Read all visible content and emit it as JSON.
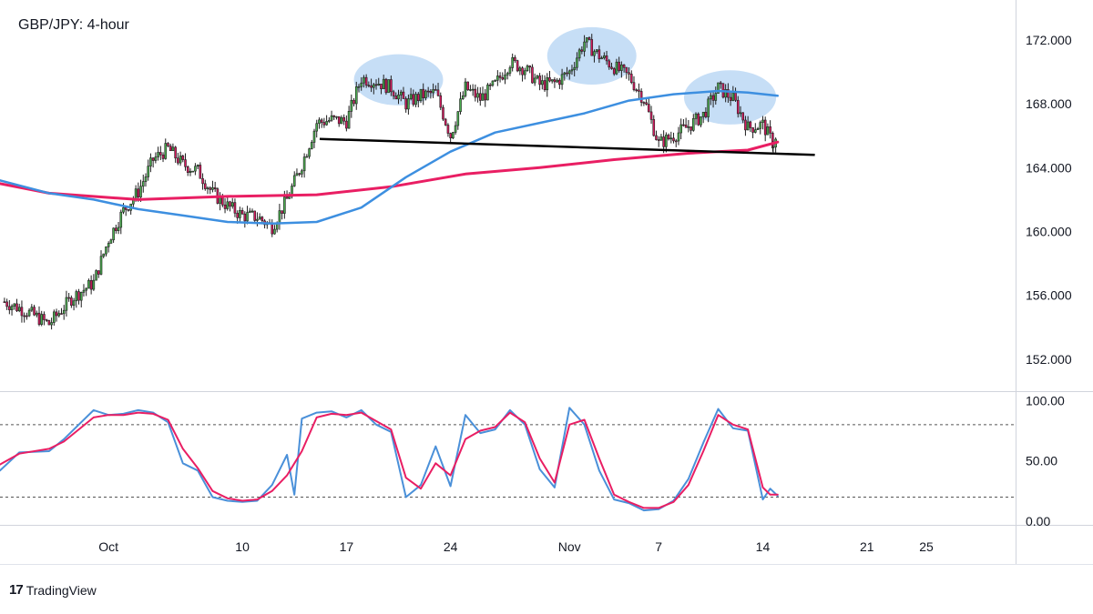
{
  "colors": {
    "bull": "#26a69a",
    "bull_fill": "#4caf50",
    "bear": "#d81b60",
    "ma_slow": "#e91e63",
    "ma_fast": "#3d8fe0",
    "stoch_k": "#4a90d9",
    "stoch_d": "#e91e63",
    "neckline": "#000000",
    "highlight": "#bcd8f4",
    "grid_line": "#d1d4dc",
    "text": "#131722"
  },
  "brand": {
    "name": "TradingView",
    "logo": "17"
  },
  "chart_data": [
    {
      "type": "candlestick",
      "title": "GBP/JPY: 4-hour",
      "ylim": [
        150.0,
        174.5
      ],
      "yticks": [
        "172.000",
        "168.000",
        "164.000",
        "160.000",
        "156.000",
        "152.000"
      ],
      "ytick_values": [
        172,
        168,
        164,
        160,
        156,
        152
      ],
      "xticks": [
        "Oct",
        "10",
        "17",
        "24",
        "Nov",
        "7",
        "14",
        "21",
        "25"
      ],
      "xtick_days": [
        1,
        10,
        17,
        24,
        32,
        38,
        45,
        52,
        56
      ],
      "xlim_days": [
        -6.3,
        62.0
      ],
      "candle_anchors": [
        [
          -6.0,
          155.6
        ],
        [
          -4.5,
          155.0
        ],
        [
          -3.0,
          154.2
        ],
        [
          -1.5,
          155.8
        ],
        [
          0.0,
          156.8
        ],
        [
          1.0,
          159.5
        ],
        [
          2.0,
          161.3
        ],
        [
          3.0,
          162.5
        ],
        [
          4.0,
          164.5
        ],
        [
          5.0,
          165.2
        ],
        [
          6.0,
          164.2
        ],
        [
          7.0,
          163.8
        ],
        [
          8.0,
          162.4
        ],
        [
          9.0,
          161.6
        ],
        [
          10.0,
          161.0
        ],
        [
          11.0,
          160.9
        ],
        [
          12.0,
          160.3
        ],
        [
          13.0,
          162.0
        ],
        [
          14.0,
          164.2
        ],
        [
          15.0,
          166.8
        ],
        [
          16.0,
          167.0
        ],
        [
          17.0,
          166.9
        ],
        [
          18.0,
          169.6
        ],
        [
          19.0,
          169.4
        ],
        [
          20.0,
          169.0
        ],
        [
          21.0,
          168.0
        ],
        [
          22.0,
          168.5
        ],
        [
          23.0,
          168.7
        ],
        [
          24.0,
          166.0
        ],
        [
          25.0,
          169.0
        ],
        [
          26.0,
          168.3
        ],
        [
          27.0,
          169.2
        ],
        [
          28.0,
          170.6
        ],
        [
          29.0,
          170.2
        ],
        [
          30.0,
          169.2
        ],
        [
          31.0,
          169.3
        ],
        [
          32.0,
          170.0
        ],
        [
          33.0,
          171.9
        ],
        [
          34.0,
          171.0
        ],
        [
          35.0,
          170.3
        ],
        [
          36.0,
          169.7
        ],
        [
          37.0,
          168.3
        ],
        [
          38.0,
          165.5
        ],
        [
          39.0,
          166.0
        ],
        [
          40.0,
          166.6
        ],
        [
          41.0,
          167.3
        ],
        [
          42.0,
          169.0
        ],
        [
          43.0,
          168.3
        ],
        [
          44.0,
          166.5
        ],
        [
          45.0,
          166.7
        ],
        [
          45.7,
          165.5
        ],
        [
          46.0,
          165.8
        ]
      ],
      "series": [
        {
          "name": "",
          "points": [
            [
              -6.3,
              163.0
            ],
            [
              -3.0,
              162.4
            ],
            [
              3.0,
              162.0
            ],
            [
              9.0,
              162.2
            ],
            [
              15.0,
              162.3
            ],
            [
              20.0,
              162.8
            ],
            [
              25.0,
              163.6
            ],
            [
              30.0,
              164.0
            ],
            [
              35.0,
              164.5
            ],
            [
              40.0,
              164.9
            ],
            [
              44.0,
              165.1
            ],
            [
              46.0,
              165.6
            ]
          ]
        },
        {
          "name": "",
          "points": [
            [
              -6.3,
              163.2
            ],
            [
              -3.0,
              162.4
            ],
            [
              0.0,
              162.0
            ],
            [
              3.0,
              161.4
            ],
            [
              6.0,
              161.0
            ],
            [
              9.0,
              160.6
            ],
            [
              12.0,
              160.5
            ],
            [
              15.0,
              160.6
            ],
            [
              18.0,
              161.5
            ],
            [
              21.0,
              163.4
            ],
            [
              24.0,
              165.0
            ],
            [
              27.0,
              166.2
            ],
            [
              30.0,
              166.8
            ],
            [
              33.0,
              167.4
            ],
            [
              36.0,
              168.2
            ],
            [
              39.0,
              168.6
            ],
            [
              42.0,
              168.8
            ],
            [
              44.0,
              168.7
            ],
            [
              46.0,
              168.5
            ]
          ]
        }
      ],
      "neckline": {
        "from": [
          15.2,
          165.8
        ],
        "to": [
          48.5,
          164.8
        ]
      },
      "highlights": [
        {
          "center": [
            20.5,
            169.5
          ],
          "rx": 3.0,
          "ry": 1.6
        },
        {
          "center": [
            33.5,
            171.0
          ],
          "rx": 3.0,
          "ry": 1.8
        },
        {
          "center": [
            42.8,
            168.4
          ],
          "rx": 3.1,
          "ry": 1.7
        }
      ]
    },
    {
      "type": "line",
      "title": "",
      "ylim": [
        -3.0,
        107.0
      ],
      "yticks": [
        "100.00",
        "50.00",
        "0.00"
      ],
      "ytick_values": [
        100,
        50,
        0
      ],
      "levels": [
        80,
        20
      ],
      "series": [
        {
          "name": "",
          "points": [
            [
              -6.3,
              42
            ],
            [
              -5.0,
              57
            ],
            [
              -3.0,
              58
            ],
            [
              -2.0,
              68
            ],
            [
              -1.0,
              80
            ],
            [
              0.0,
              92
            ],
            [
              1.0,
              88
            ],
            [
              2.0,
              89
            ],
            [
              3.0,
              92
            ],
            [
              4.0,
              90
            ],
            [
              5.0,
              82
            ],
            [
              6.0,
              48
            ],
            [
              7.0,
              42
            ],
            [
              8.0,
              20
            ],
            [
              9.0,
              17
            ],
            [
              10.0,
              16
            ],
            [
              11.0,
              17
            ],
            [
              12.0,
              30
            ],
            [
              13.0,
              55
            ],
            [
              13.5,
              22
            ],
            [
              14.0,
              85
            ],
            [
              15.0,
              90
            ],
            [
              16.0,
              91
            ],
            [
              17.0,
              86
            ],
            [
              18.0,
              92
            ],
            [
              19.0,
              80
            ],
            [
              20.0,
              74
            ],
            [
              21.0,
              20
            ],
            [
              22.0,
              30
            ],
            [
              23.0,
              62
            ],
            [
              24.0,
              29
            ],
            [
              25.0,
              88
            ],
            [
              26.0,
              73
            ],
            [
              27.0,
              76
            ],
            [
              28.0,
              92
            ],
            [
              29.0,
              80
            ],
            [
              30.0,
              43
            ],
            [
              31.0,
              28
            ],
            [
              32.0,
              94
            ],
            [
              33.0,
              80
            ],
            [
              34.0,
              42
            ],
            [
              35.0,
              18
            ],
            [
              36.0,
              15
            ],
            [
              37.0,
              9
            ],
            [
              38.0,
              10
            ],
            [
              39.0,
              17
            ],
            [
              40.0,
              35
            ],
            [
              41.0,
              65
            ],
            [
              42.0,
              93
            ],
            [
              43.0,
              77
            ],
            [
              44.0,
              75
            ],
            [
              45.0,
              18
            ],
            [
              45.5,
              27
            ],
            [
              46.0,
              21
            ]
          ]
        },
        {
          "name": "",
          "points": [
            [
              -6.3,
              47
            ],
            [
              -5.0,
              56
            ],
            [
              -3.0,
              60
            ],
            [
              -2.0,
              66
            ],
            [
              -1.0,
              76
            ],
            [
              0.0,
              86
            ],
            [
              1.0,
              88
            ],
            [
              2.0,
              88
            ],
            [
              3.0,
              90
            ],
            [
              4.0,
              89
            ],
            [
              5.0,
              84
            ],
            [
              6.0,
              60
            ],
            [
              7.0,
              44
            ],
            [
              8.0,
              25
            ],
            [
              9.0,
              19
            ],
            [
              10.0,
              17
            ],
            [
              11.0,
              18
            ],
            [
              12.0,
              25
            ],
            [
              13.0,
              38
            ],
            [
              14.0,
              58
            ],
            [
              15.0,
              86
            ],
            [
              16.0,
              89
            ],
            [
              17.0,
              88
            ],
            [
              18.0,
              90
            ],
            [
              19.0,
              83
            ],
            [
              20.0,
              76
            ],
            [
              21.0,
              36
            ],
            [
              22.0,
              27
            ],
            [
              23.0,
              48
            ],
            [
              24.0,
              38
            ],
            [
              25.0,
              68
            ],
            [
              26.0,
              75
            ],
            [
              27.0,
              78
            ],
            [
              28.0,
              90
            ],
            [
              29.0,
              82
            ],
            [
              30.0,
              52
            ],
            [
              31.0,
              32
            ],
            [
              32.0,
              80
            ],
            [
              33.0,
              84
            ],
            [
              34.0,
              52
            ],
            [
              35.0,
              22
            ],
            [
              36.0,
              16
            ],
            [
              37.0,
              11
            ],
            [
              38.0,
              11
            ],
            [
              39.0,
              16
            ],
            [
              40.0,
              30
            ],
            [
              41.0,
              58
            ],
            [
              42.0,
              88
            ],
            [
              43.0,
              80
            ],
            [
              44.0,
              76
            ],
            [
              45.0,
              28
            ],
            [
              45.5,
              22
            ],
            [
              46.0,
              22
            ]
          ]
        }
      ]
    }
  ]
}
